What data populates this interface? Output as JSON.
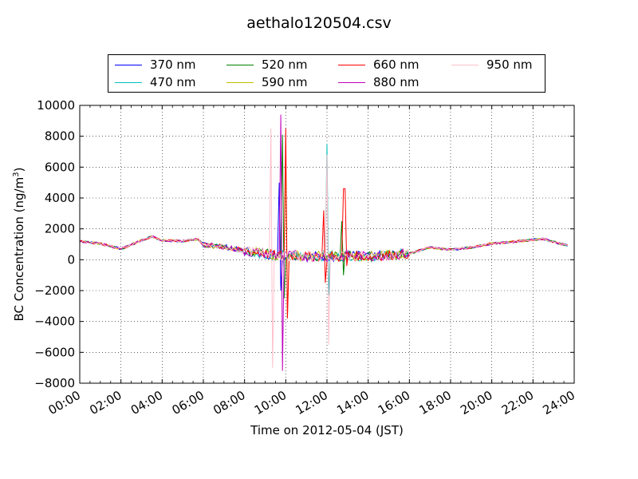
{
  "chart_data": {
    "type": "line",
    "title": "aethalo120504.csv",
    "xlabel": "Time on 2012-05-04 (JST)",
    "ylabel": "BC Concentration (ng/m",
    "ylabel_superscript": "3",
    "ylabel_suffix": ")",
    "xlim": [
      "00:00",
      "24:00"
    ],
    "ylim": [
      -8000,
      10000
    ],
    "x_ticks": [
      "00:00",
      "02:00",
      "04:00",
      "06:00",
      "08:00",
      "10:00",
      "12:00",
      "14:00",
      "16:00",
      "18:00",
      "20:00",
      "22:00",
      "24:00"
    ],
    "y_ticks": [
      "10000",
      "8000",
      "6000",
      "4000",
      "2000",
      "0",
      "−2000",
      "−4000",
      "−6000",
      "−8000"
    ],
    "grid": true,
    "legend_position": "top",
    "series": [
      {
        "name": "370 nm",
        "color": "#0000ff"
      },
      {
        "name": "470 nm",
        "color": "#00bfbf"
      },
      {
        "name": "520 nm",
        "color": "#008000"
      },
      {
        "name": "590 nm",
        "color": "#bfbf00"
      },
      {
        "name": "660 nm",
        "color": "#ff0000"
      },
      {
        "name": "880 nm",
        "color": "#bf00bf"
      },
      {
        "name": "950 nm",
        "color": "#ffc0cb"
      }
    ],
    "x": [
      "00:00",
      "01:00",
      "02:00",
      "03:00",
      "03:30",
      "04:00",
      "05:00",
      "05:45",
      "06:00",
      "07:00",
      "08:00",
      "09:00",
      "09:30",
      "09:45",
      "10:00",
      "10:30",
      "11:00",
      "11:45",
      "12:00",
      "12:10",
      "12:30",
      "12:45",
      "13:00",
      "14:00",
      "15:00",
      "16:00",
      "17:00",
      "18:00",
      "19:00",
      "20:00",
      "21:00",
      "22:00",
      "22:30",
      "23:00",
      "23:45"
    ],
    "base": [
      1200,
      1050,
      700,
      1250,
      1500,
      1250,
      1200,
      1350,
      950,
      850,
      550,
      400,
      300,
      300,
      250,
      300,
      200,
      250,
      200,
      250,
      150,
      200,
      300,
      200,
      300,
      400,
      800,
      650,
      800,
      1050,
      1150,
      1300,
      1350,
      1150,
      900
    ],
    "peaks": [
      {
        "x": "09:45",
        "max": 9400,
        "min": -7200,
        "series": "880 nm"
      },
      {
        "x": "09:15",
        "max": 8500,
        "min": -7000,
        "series": "950 nm"
      },
      {
        "x": "10:00",
        "max": 8500,
        "min": -3800,
        "series": "660 nm"
      },
      {
        "x": "09:50",
        "max": 8100,
        "min": -2500,
        "series": "520 nm"
      },
      {
        "x": "09:40",
        "max": 5000,
        "min": -2000,
        "series": "370 nm"
      },
      {
        "x": "10:00",
        "max": 7000,
        "min": -3800,
        "series": "590 nm"
      },
      {
        "x": "12:00",
        "max": 7500,
        "min": -2300,
        "series": "470 nm"
      },
      {
        "x": "12:00",
        "max": 6800,
        "min": -5500,
        "series": "950 nm"
      },
      {
        "x": "11:50",
        "max": 3200,
        "min": -1500,
        "series": "660 nm"
      },
      {
        "x": "12:50",
        "max": 4600,
        "min": -400,
        "series": "660 nm"
      },
      {
        "x": "12:45",
        "max": 2500,
        "min": -1000,
        "series": "520 nm"
      }
    ]
  }
}
